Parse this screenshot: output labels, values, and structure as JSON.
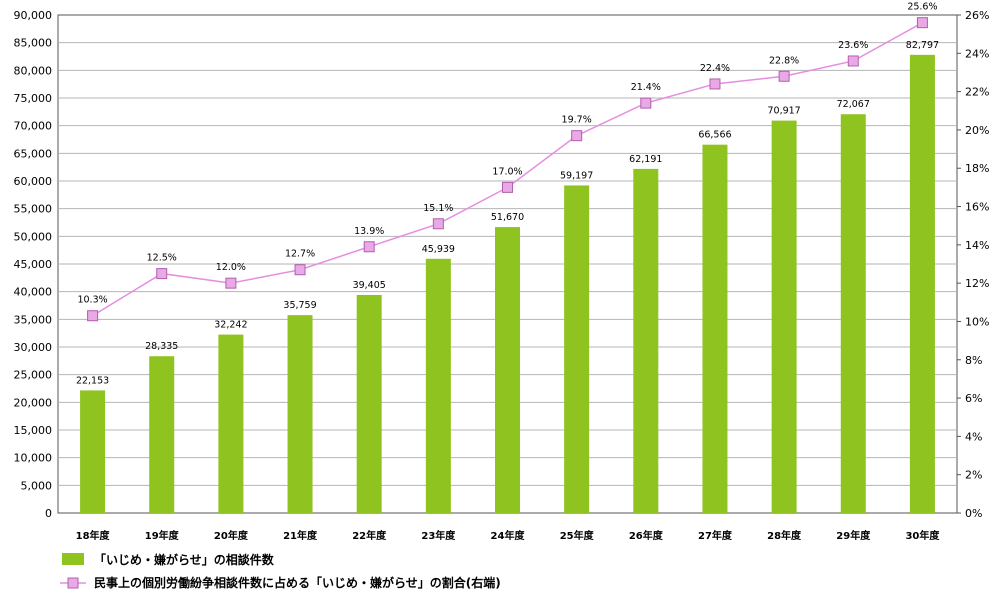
{
  "chart_data": {
    "type": "bar",
    "categories": [
      "18年度",
      "19年度",
      "20年度",
      "21年度",
      "22年度",
      "23年度",
      "24年度",
      "25年度",
      "26年度",
      "27年度",
      "28年度",
      "29年度",
      "30年度"
    ],
    "series": [
      {
        "name": "「いじめ・嫌がらせ」の相談件数",
        "type": "bar",
        "axis": "left",
        "color": "#8fc31f",
        "values": [
          22153,
          28335,
          32242,
          35759,
          39405,
          45939,
          51670,
          59197,
          62191,
          66566,
          70917,
          72067,
          82797
        ],
        "labels": [
          "22,153",
          "28,335",
          "32,242",
          "35,759",
          "39,405",
          "45,939",
          "51,670",
          "59,197",
          "62,191",
          "66,566",
          "70,917",
          "72,067",
          "82,797"
        ]
      },
      {
        "name": "民事上の個別労働紛争相談件数に占める「いじめ・嫌がらせ」の割合(右端)",
        "type": "line",
        "axis": "right",
        "color": "#e58ee0",
        "values": [
          10.3,
          12.5,
          12.0,
          12.7,
          13.9,
          15.1,
          17.0,
          19.7,
          21.4,
          22.4,
          22.8,
          23.6,
          25.6
        ],
        "labels": [
          "10.3%",
          "12.5%",
          "12.0%",
          "12.7%",
          "13.9%",
          "15.1%",
          "17.0%",
          "19.7%",
          "21.4%",
          "22.4%",
          "22.8%",
          "23.6%",
          "25.6%"
        ]
      }
    ],
    "y_left": {
      "ylim": [
        0,
        90000
      ],
      "ticks": [
        "0",
        "5,000",
        "10,000",
        "15,000",
        "20,000",
        "25,000",
        "30,000",
        "35,000",
        "40,000",
        "45,000",
        "50,000",
        "55,000",
        "60,000",
        "65,000",
        "70,000",
        "75,000",
        "80,000",
        "85,000",
        "90,000"
      ]
    },
    "y_right": {
      "ylim": [
        0,
        26
      ],
      "ticks": [
        "0%",
        "2%",
        "4%",
        "6%",
        "8%",
        "10%",
        "12%",
        "14%",
        "16%",
        "18%",
        "20%",
        "22%",
        "24%",
        "26%"
      ]
    },
    "grid": true,
    "legend_position": "bottom-left"
  }
}
